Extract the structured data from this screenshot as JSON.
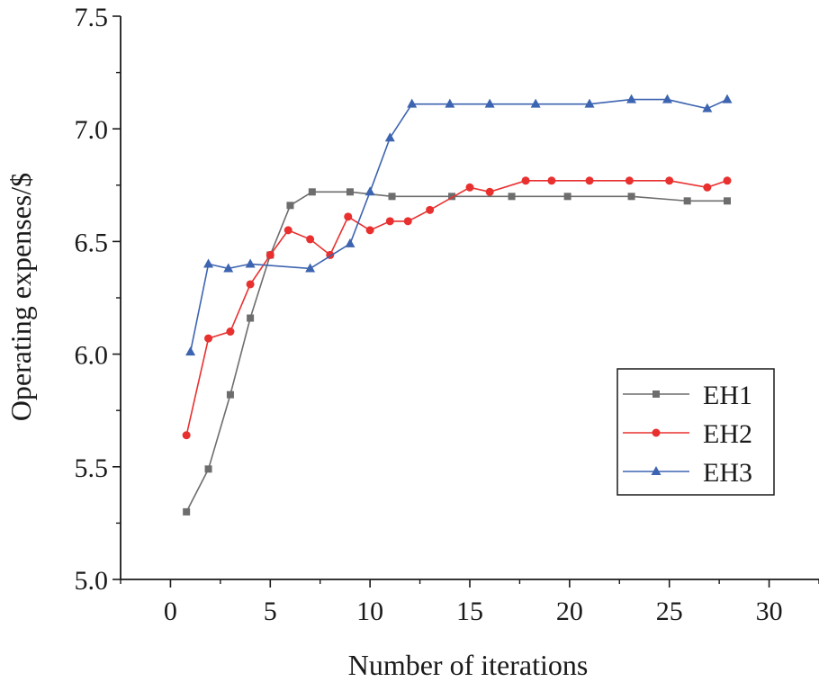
{
  "chart_data": {
    "type": "line",
    "title": "",
    "xlabel": "Number of iterations",
    "ylabel": "Operating expenses/$",
    "xlim": [
      -2.5,
      32.5
    ],
    "ylim": [
      5.0,
      7.5
    ],
    "xticks": [
      0,
      5,
      10,
      15,
      20,
      25,
      30
    ],
    "yticks": [
      5.0,
      5.5,
      6.0,
      6.5,
      7.0,
      7.5
    ],
    "xtick_labels": [
      "0",
      "5",
      "10",
      "15",
      "20",
      "25",
      "30"
    ],
    "ytick_labels": [
      "5.0",
      "5.5",
      "6.0",
      "6.5",
      "7.0",
      "7.5"
    ],
    "grid": false,
    "legend_position": "lower-right",
    "series": [
      {
        "name": "EH1",
        "color": "#6d6d6d",
        "marker": "square",
        "x": [
          0.8,
          1.9,
          3.0,
          4.0,
          5.0,
          6.0,
          7.1,
          9.0,
          11.1,
          14.1,
          17.1,
          19.9,
          23.1,
          25.9,
          27.9
        ],
        "y": [
          5.3,
          5.49,
          5.82,
          6.16,
          6.44,
          6.66,
          6.72,
          6.72,
          6.7,
          6.7,
          6.7,
          6.7,
          6.7,
          6.68,
          6.68
        ]
      },
      {
        "name": "EH2",
        "color": "#e8302f",
        "marker": "circle",
        "x": [
          0.8,
          1.9,
          3.0,
          4.0,
          5.0,
          5.9,
          7.0,
          8.0,
          8.9,
          10.0,
          11.0,
          11.9,
          13.0,
          15.0,
          16.0,
          17.8,
          19.1,
          21.0,
          23.0,
          25.0,
          26.9,
          27.9
        ],
        "y": [
          5.64,
          6.07,
          6.1,
          6.31,
          6.44,
          6.55,
          6.51,
          6.44,
          6.61,
          6.55,
          6.59,
          6.59,
          6.64,
          6.74,
          6.72,
          6.77,
          6.77,
          6.77,
          6.77,
          6.77,
          6.74,
          6.77
        ]
      },
      {
        "name": "EH3",
        "color": "#3d64b0",
        "marker": "triangle",
        "x": [
          1.0,
          1.9,
          2.9,
          4.0,
          7.0,
          9.0,
          10.0,
          11.0,
          12.1,
          14.0,
          16.0,
          18.3,
          21.0,
          23.1,
          24.9,
          26.9,
          27.9
        ],
        "y": [
          6.01,
          6.4,
          6.38,
          6.4,
          6.38,
          6.49,
          6.72,
          6.96,
          7.11,
          7.11,
          7.11,
          7.11,
          7.11,
          7.13,
          7.13,
          7.09,
          7.13
        ]
      }
    ]
  }
}
